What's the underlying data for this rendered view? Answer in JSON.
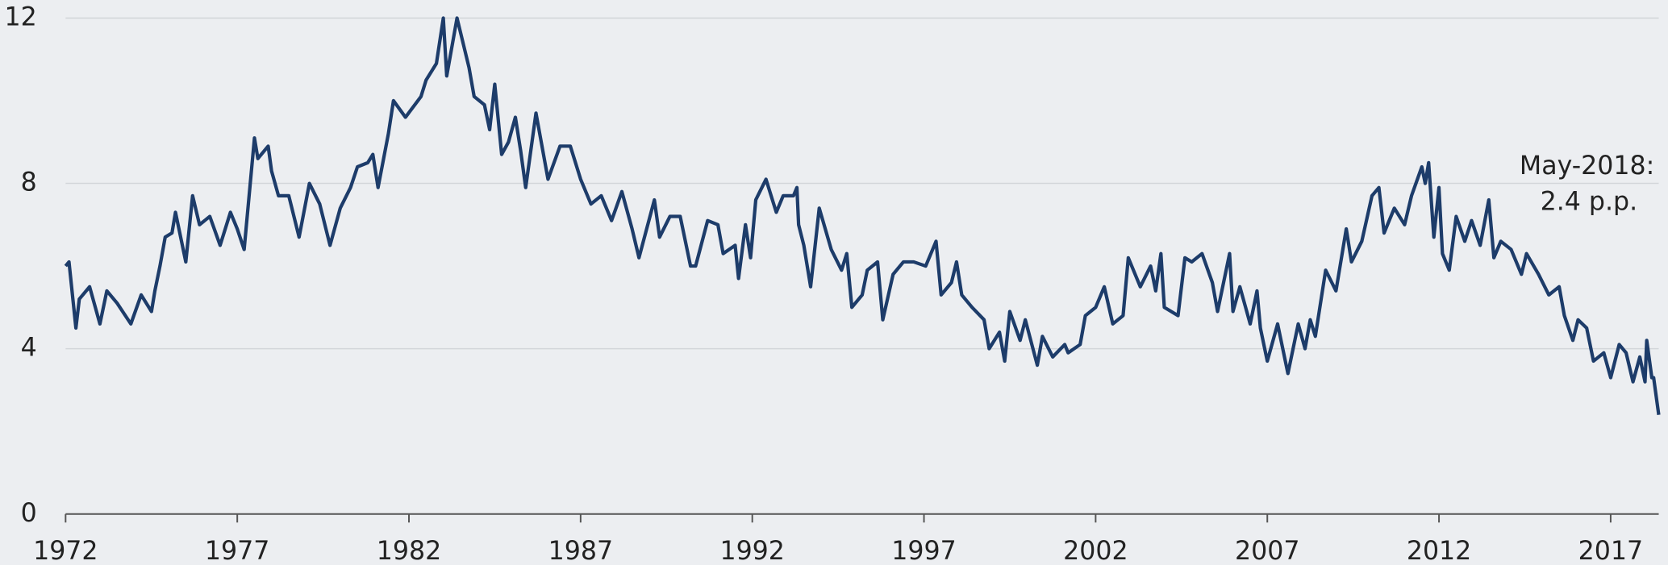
{
  "chart_data": {
    "type": "line",
    "annotation": [
      "May-2018:",
      "2.4 p.p."
    ],
    "xlim": [
      1972,
      2018.4
    ],
    "xticks": [
      1972,
      1977,
      1982,
      1987,
      1992,
      1997,
      2002,
      2007,
      2012,
      2017
    ],
    "ylim": [
      0,
      12
    ],
    "yticks": [
      0,
      4,
      8,
      12
    ],
    "grid": true,
    "x": [
      1972.0,
      1972.1,
      1972.3,
      1972.4,
      1972.7,
      1973.0,
      1973.2,
      1973.5,
      1973.9,
      1974.2,
      1974.5,
      1974.6,
      1974.75,
      1974.9,
      1975.1,
      1975.2,
      1975.5,
      1975.7,
      1975.9,
      1976.2,
      1976.5,
      1976.8,
      1977.0,
      1977.2,
      1977.5,
      1977.6,
      1977.9,
      1978.0,
      1978.2,
      1978.5,
      1978.8,
      1979.1,
      1979.4,
      1979.7,
      1980.0,
      1980.3,
      1980.5,
      1980.8,
      1980.95,
      1981.1,
      1981.4,
      1981.55,
      1981.9,
      1982.35,
      1982.5,
      1982.8,
      1983.0,
      1983.1,
      1983.4,
      1983.75,
      1983.9,
      1984.2,
      1984.35,
      1984.5,
      1984.7,
      1984.9,
      1985.1,
      1985.25,
      1985.4,
      1985.7,
      1986.05,
      1986.4,
      1986.7,
      1987.0,
      1987.3,
      1987.6,
      1987.9,
      1988.2,
      1988.5,
      1988.7,
      1989.15,
      1989.3,
      1989.6,
      1989.9,
      1990.2,
      1990.35,
      1990.7,
      1991.0,
      1991.15,
      1991.5,
      1991.6,
      1991.8,
      1991.95,
      1992.1,
      1992.4,
      1992.7,
      1992.9,
      1993.2,
      1993.3,
      1993.35,
      1993.5,
      1993.7,
      1993.95,
      1994.3,
      1994.6,
      1994.75,
      1994.9,
      1995.2,
      1995.35,
      1995.65,
      1995.8,
      1996.1,
      1996.4,
      1996.7,
      1997.05,
      1997.35,
      1997.5,
      1997.8,
      1997.95,
      1998.1,
      1998.4,
      1998.75,
      1998.9,
      1999.2,
      1999.35,
      1999.5,
      1999.8,
      1999.95,
      2000.3,
      2000.45,
      2000.75,
      2001.1,
      2001.2,
      2001.55,
      2001.7,
      2002.0,
      2002.25,
      2002.5,
      2002.8,
      2002.95,
      2003.3,
      2003.6,
      2003.75,
      2003.9,
      2004.0,
      2004.4,
      2004.6,
      2004.8,
      2005.1,
      2005.4,
      2005.55,
      2005.9,
      2006.0,
      2006.2,
      2006.5,
      2006.7,
      2006.8,
      2007.0,
      2007.3,
      2007.6,
      2007.9,
      2008.1,
      2008.25,
      2008.4,
      2008.7,
      2009.0,
      2009.3,
      2009.45,
      2009.75,
      2010.05,
      2010.25,
      2010.4,
      2010.7,
      2011.0,
      2011.2,
      2011.5,
      2011.6,
      2011.7,
      2011.85,
      2012.0,
      2012.1,
      2012.3,
      2012.5,
      2012.75,
      2012.95,
      2013.2,
      2013.45,
      2013.6,
      2013.8,
      2014.1,
      2014.4,
      2014.55,
      2014.9,
      2015.2,
      2015.5,
      2015.65,
      2015.9,
      2016.05,
      2016.3,
      2016.5,
      2016.8,
      2017.0,
      2017.25,
      2017.45,
      2017.65,
      2017.85,
      2018.0,
      2018.05,
      2018.2,
      2018.25,
      2018.4
    ],
    "series": [
      {
        "color": "#1d3c6a",
        "values": [
          6.0,
          6.1,
          4.5,
          5.2,
          5.5,
          4.6,
          5.4,
          5.1,
          4.6,
          5.3,
          4.9,
          5.4,
          6.0,
          6.7,
          6.8,
          7.3,
          6.1,
          7.7,
          7.0,
          7.2,
          6.5,
          7.3,
          6.9,
          6.4,
          9.1,
          8.6,
          8.9,
          8.3,
          7.7,
          7.7,
          6.7,
          8.0,
          7.5,
          6.5,
          7.4,
          7.9,
          8.4,
          8.5,
          8.7,
          7.9,
          9.2,
          10.0,
          9.6,
          10.1,
          10.5,
          10.9,
          12.0,
          10.6,
          12.0,
          10.8,
          10.1,
          9.9,
          9.3,
          10.4,
          8.7,
          9.0,
          9.6,
          8.8,
          7.9,
          9.7,
          8.1,
          8.9,
          8.9,
          8.1,
          7.5,
          7.7,
          7.1,
          7.8,
          6.9,
          6.2,
          7.6,
          6.7,
          7.2,
          7.2,
          6.0,
          6.0,
          7.1,
          7.0,
          6.3,
          6.5,
          5.7,
          7.0,
          6.2,
          7.6,
          8.1,
          7.3,
          7.7,
          7.7,
          7.9,
          7.0,
          6.5,
          5.5,
          7.4,
          6.4,
          5.9,
          6.3,
          5.0,
          5.3,
          5.9,
          6.1,
          4.7,
          5.8,
          6.1,
          6.1,
          6.0,
          6.6,
          5.3,
          5.6,
          6.1,
          5.3,
          5.0,
          4.7,
          4.0,
          4.4,
          3.7,
          4.9,
          4.2,
          4.7,
          3.6,
          4.3,
          3.8,
          4.1,
          3.9,
          4.1,
          4.8,
          5.0,
          5.5,
          4.6,
          4.8,
          6.2,
          5.5,
          6.0,
          5.4,
          6.3,
          5.0,
          4.8,
          6.2,
          6.1,
          6.3,
          5.6,
          4.9,
          6.3,
          4.9,
          5.5,
          4.6,
          5.4,
          4.5,
          3.7,
          4.6,
          3.4,
          4.6,
          4.0,
          4.7,
          4.3,
          5.9,
          5.4,
          6.9,
          6.1,
          6.6,
          7.7,
          7.9,
          6.8,
          7.4,
          7.0,
          7.7,
          8.4,
          8.0,
          8.5,
          6.7,
          7.9,
          6.3,
          5.9,
          7.2,
          6.6,
          7.1,
          6.5,
          7.6,
          6.2,
          6.6,
          6.4,
          5.8,
          6.3,
          5.8,
          5.3,
          5.5,
          4.8,
          4.2,
          4.7,
          4.5,
          3.7,
          3.9,
          3.3,
          4.1,
          3.9,
          3.2,
          3.8,
          3.2,
          4.2,
          3.3,
          3.3,
          2.4
        ]
      }
    ]
  }
}
